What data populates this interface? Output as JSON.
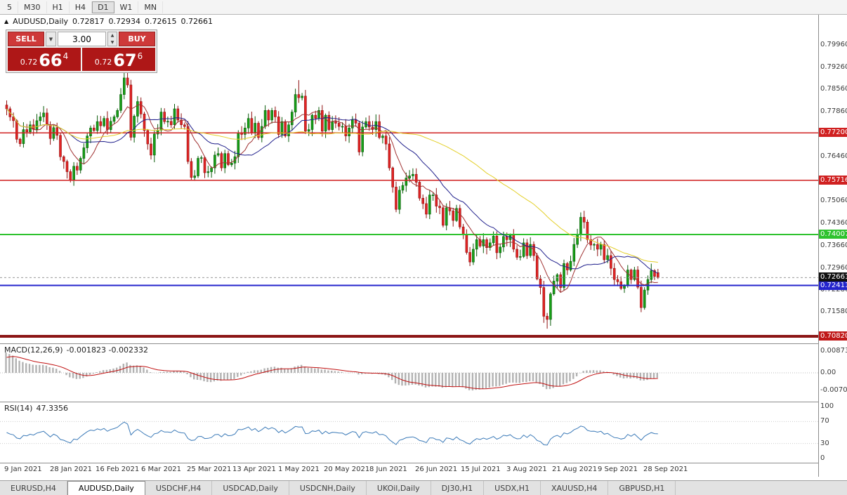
{
  "toolbar": {
    "periods": [
      "5",
      "M30",
      "H1",
      "H4",
      "D1",
      "W1",
      "MN"
    ],
    "active": "D1"
  },
  "title_bar": {
    "collapse_icon": "▲",
    "symbol_title": "AUDUSD,Daily",
    "open": "0.72817",
    "high": "0.72934",
    "low": "0.72615",
    "close": "0.72661"
  },
  "one_click": {
    "sell_label": "SELL",
    "buy_label": "BUY",
    "volume": "3.00",
    "sell_price": {
      "prefix": "0.72",
      "big": "66",
      "sup": "4"
    },
    "buy_price": {
      "prefix": "0.72",
      "big": "67",
      "sup": "6"
    }
  },
  "indicators": {
    "macd": {
      "label": "MACD(12,26,9)",
      "values": "-0.001823 -0.002332"
    },
    "rsi": {
      "label": "RSI(14)",
      "value": "47.3356"
    }
  },
  "tabs": [
    "EURUSD,H4",
    "AUDUSD,Daily",
    "USDCHF,H4",
    "USDCAD,Daily",
    "USDCNH,Daily",
    "UKOil,Daily",
    "DJ30,H1",
    "USDX,H1",
    "XAUUSD,H4",
    "GBPUSD,H1"
  ],
  "active_tab": "AUDUSD,Daily",
  "chart_data": {
    "type": "candlestick",
    "symbol": "AUDUSD",
    "timeframe": "Daily",
    "title": "AUDUSD,Daily 0.72817 0.72934 0.72615 0.72661",
    "x_labels": [
      "9 Jan 2021",
      "28 Jan 2021",
      "16 Feb 2021",
      "6 Mar 2021",
      "25 Mar 2021",
      "13 Apr 2021",
      "1 May 2021",
      "20 May 2021",
      "8 Jun 2021",
      "26 Jun 2021",
      "15 Jul 2021",
      "3 Aug 2021",
      "21 Aug 2021",
      "9 Sep 2021",
      "28 Sep 2021"
    ],
    "price_axis": {
      "min": 0.706,
      "max": 0.809,
      "gray_ticks": [
        {
          "label": "0.79960",
          "value": 0.7996
        },
        {
          "label": "0.79260",
          "value": 0.7926
        },
        {
          "label": "0.78560",
          "value": 0.7856
        },
        {
          "label": "0.77860",
          "value": 0.7786
        },
        {
          "label": "0.76460",
          "value": 0.7646
        },
        {
          "label": "0.75760",
          "value": 0.7576
        },
        {
          "label": "0.75060",
          "value": 0.7506
        },
        {
          "label": "0.74360",
          "value": 0.7436
        },
        {
          "label": "0.73660",
          "value": 0.7366
        },
        {
          "label": "0.72960",
          "value": 0.7296
        },
        {
          "label": "0.72280",
          "value": 0.7228
        },
        {
          "label": "0.71580",
          "value": 0.7158
        }
      ]
    },
    "hlines": [
      {
        "label": "0.77200",
        "value": 0.772,
        "color": "#d02020",
        "width": 1.5
      },
      {
        "label": "0.75716",
        "value": 0.75716,
        "color": "#d02020",
        "width": 1.5
      },
      {
        "label": "0.74007",
        "value": 0.74007,
        "color": "#2ec22e",
        "width": 2
      },
      {
        "label": "0.72411",
        "value": 0.72411,
        "color": "#2424cc",
        "width": 2
      },
      {
        "label": "0.70820",
        "value": 0.7082,
        "color": "#8c1616",
        "width": 4,
        "badge": "#c01818"
      }
    ],
    "current_price": {
      "label": "0.72661",
      "value": 0.72661,
      "bg": "#111111"
    },
    "candle_up": "#17a017",
    "candle_up_line": "#0a5c0a",
    "candle_down": "#e32424",
    "candle_down_line": "#8f1010",
    "closes": [
      0.7795,
      0.777,
      0.7758,
      0.77,
      0.7686,
      0.773,
      0.7723,
      0.7745,
      0.7731,
      0.7758,
      0.777,
      0.7782,
      0.7745,
      0.7702,
      0.7736,
      0.7712,
      0.7645,
      0.763,
      0.7598,
      0.7571,
      0.7615,
      0.7603,
      0.764,
      0.7673,
      0.771,
      0.7735,
      0.7727,
      0.7755,
      0.7742,
      0.7765,
      0.773,
      0.7756,
      0.777,
      0.779,
      0.784,
      0.7892,
      0.787,
      0.7706,
      0.7772,
      0.7818,
      0.7779,
      0.7727,
      0.7685,
      0.765,
      0.7716,
      0.7728,
      0.7785,
      0.7755,
      0.7756,
      0.7745,
      0.7795,
      0.776,
      0.7745,
      0.774,
      0.763,
      0.758,
      0.7585,
      0.764,
      0.7642,
      0.7595,
      0.7598,
      0.761,
      0.765,
      0.7655,
      0.761,
      0.7655,
      0.762,
      0.7625,
      0.7645,
      0.772,
      0.7715,
      0.7735,
      0.7765,
      0.772,
      0.775,
      0.7705,
      0.774,
      0.779,
      0.776,
      0.779,
      0.777,
      0.7715,
      0.7755,
      0.771,
      0.7745,
      0.7785,
      0.784,
      0.783,
      0.7835,
      0.7725,
      0.773,
      0.7775,
      0.7765,
      0.779,
      0.7725,
      0.7775,
      0.773,
      0.7755,
      0.775,
      0.774,
      0.774,
      0.771,
      0.7735,
      0.776,
      0.775,
      0.766,
      0.7738,
      0.7755,
      0.7738,
      0.773,
      0.7755,
      0.7705,
      0.771,
      0.7685,
      0.761,
      0.755,
      0.748,
      0.754,
      0.7555,
      0.7578,
      0.7585,
      0.759,
      0.7565,
      0.7515,
      0.7498,
      0.7465,
      0.7525,
      0.7525,
      0.749,
      0.7485,
      0.743,
      0.7485,
      0.7475,
      0.7445,
      0.7483,
      0.7425,
      0.74,
      0.7345,
      0.7315,
      0.7355,
      0.7385,
      0.7365,
      0.7385,
      0.736,
      0.7375,
      0.7396,
      0.7344,
      0.7362,
      0.7395,
      0.7385,
      0.74,
      0.7355,
      0.733,
      0.7332,
      0.7375,
      0.7335,
      0.737,
      0.7335,
      0.7262,
      0.7235,
      0.7145,
      0.7135,
      0.7215,
      0.7255,
      0.7275,
      0.7235,
      0.731,
      0.729,
      0.7317,
      0.737,
      0.74,
      0.7455,
      0.744,
      0.7385,
      0.7368,
      0.737,
      0.7355,
      0.737,
      0.7322,
      0.7335,
      0.7295,
      0.726,
      0.7253,
      0.7232,
      0.724,
      0.729,
      0.726,
      0.729,
      0.7236,
      0.7172,
      0.7227,
      0.726,
      0.7288,
      0.727,
      0.72661
    ],
    "last_ohlc": [
      0.72817,
      0.72934,
      0.72615,
      0.72661
    ],
    "wick_overrides": {
      "36": [
        0.7925,
        null
      ],
      "87": [
        0.7885,
        null
      ],
      "161": [
        null,
        0.7106
      ]
    },
    "moving_averages": [
      {
        "period": 8,
        "color": "#a03232"
      },
      {
        "period": 20,
        "color": "#20208c"
      },
      {
        "period": 55,
        "color": "#e3cf28"
      }
    ],
    "macd": {
      "fast": 12,
      "slow": 26,
      "signal": 9,
      "range": [
        -0.0115,
        0.0115
      ],
      "axis_ticks": [
        {
          "label": "0.00873",
          "value": 0.00873
        },
        {
          "label": "0.00",
          "value": 0
        },
        {
          "label": "-0.00700",
          "value": -0.007
        }
      ],
      "hist_color": "#b2b2b2",
      "signal_color": "#c01010"
    },
    "rsi": {
      "period": 14,
      "color": "#3b7ab8",
      "axis_ticks": [
        {
          "label": "100",
          "value": 100
        },
        {
          "label": "70",
          "value": 70
        },
        {
          "label": "30",
          "value": 30
        },
        {
          "label": "0",
          "value": 0
        }
      ],
      "levels": [
        70,
        30
      ]
    }
  }
}
